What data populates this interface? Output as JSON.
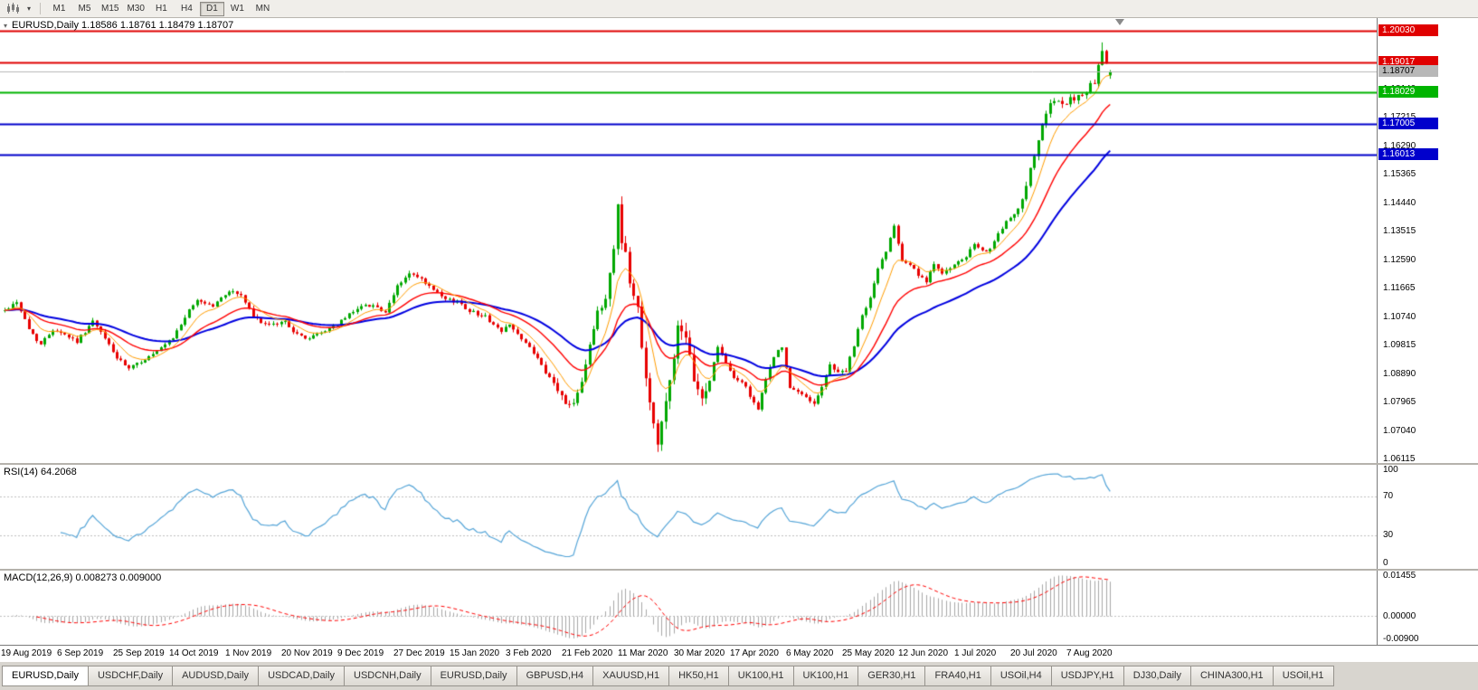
{
  "colors": {
    "up": "#00a800",
    "down": "#e80000",
    "ma_fast": "#ff9d00",
    "ma_mid": "#ff0000",
    "ma_slow": "#0000e0",
    "rsi_line": "#55a5d8",
    "macd_hist": "#a8a8a8",
    "macd_signal": "#ff0000",
    "grid_dash": "#c0c0c0"
  },
  "toolbar": {
    "chart_icon": "candlestick-chart-icon",
    "dropdown_icon": "chevron-down-icon",
    "timeframes": [
      "M1",
      "M5",
      "M15",
      "M30",
      "H1",
      "H4",
      "D1",
      "W1",
      "MN"
    ],
    "active_timeframe": "D1"
  },
  "main_panel": {
    "header": "EURUSD,Daily 1.18586 1.18761 1.18479 1.18707",
    "symbol": "EURUSD",
    "period": "Daily",
    "open": "1.18586",
    "high": "1.18761",
    "low": "1.18479",
    "close": "1.18707"
  },
  "price_axis": {
    "y_max": 1.2045,
    "y_min": 1.06,
    "ticks": [
      "1.19065",
      "1.18140",
      "1.17215",
      "1.16290",
      "1.15365",
      "1.14440",
      "1.13515",
      "1.12590",
      "1.11665",
      "1.10740",
      "1.09815",
      "1.08890",
      "1.07965",
      "1.07040",
      "1.06115"
    ],
    "levels": [
      {
        "value": "1.20030",
        "price": 1.2003,
        "color": "#e00000",
        "text_color": "#ffffff",
        "width": 2,
        "role": "resistance"
      },
      {
        "value": "1.19017",
        "price": 1.19017,
        "color": "#e00000",
        "text_color": "#ffffff",
        "width": 2,
        "role": "resistance"
      },
      {
        "value": "1.18707",
        "price": 1.18707,
        "color": "#b8b8b8",
        "text_color": "#000000",
        "width": 1,
        "role": "bid"
      },
      {
        "value": "1.18029",
        "price": 1.18029,
        "color": "#00b400",
        "text_color": "#ffffff",
        "width": 2,
        "role": "support"
      },
      {
        "value": "1.17005",
        "price": 1.17005,
        "color": "#0000cc",
        "text_color": "#ffffff",
        "width": 2,
        "role": "support"
      },
      {
        "value": "1.16013",
        "price": 1.16013,
        "color": "#0000cc",
        "text_color": "#ffffff",
        "width": 2,
        "role": "support"
      }
    ]
  },
  "rsi_panel": {
    "label": "RSI(14) 64.2068",
    "indicator": "RSI",
    "period": 14,
    "current": "64.2068",
    "ticks": [
      "100",
      "70",
      "30",
      "0"
    ],
    "dashed_levels": [
      70,
      30
    ]
  },
  "macd_panel": {
    "label": "MACD(12,26,9) 0.008273 0.009000",
    "indicator": "MACD",
    "params": "12,26,9",
    "macd_value": "0.008273",
    "signal_value": "0.009000",
    "y_max": 0.0152,
    "y_min": -0.0096,
    "ticks": [
      "0.01455",
      "0.00000",
      "-0.00900"
    ]
  },
  "date_axis": {
    "labels": [
      "19 Aug 2019",
      "6 Sep 2019",
      "25 Sep 2019",
      "14 Oct 2019",
      "1 Nov 2019",
      "20 Nov 2019",
      "9 Dec 2019",
      "27 Dec 2019",
      "15 Jan 2020",
      "3 Feb 2020",
      "21 Feb 2020",
      "11 Mar 2020",
      "30 Mar 2020",
      "17 Apr 2020",
      "6 May 2020",
      "25 May 2020",
      "12 Jun 2020",
      "1 Jul 2020",
      "20 Jul 2020",
      "7 Aug 2020"
    ],
    "bars_per_label": 14
  },
  "tabs": [
    {
      "label": "EURUSD,Daily",
      "active": true
    },
    {
      "label": "USDCHF,Daily",
      "active": false
    },
    {
      "label": "AUDUSD,Daily",
      "active": false
    },
    {
      "label": "USDCAD,Daily",
      "active": false
    },
    {
      "label": "USDCNH,Daily",
      "active": false
    },
    {
      "label": "EURUSD,Daily",
      "active": false
    },
    {
      "label": "GBPUSD,H4",
      "active": false
    },
    {
      "label": "XAUUSD,H1",
      "active": false
    },
    {
      "label": "HK50,H1",
      "active": false
    },
    {
      "label": "UK100,H1",
      "active": false
    },
    {
      "label": "UK100,H1",
      "active": false
    },
    {
      "label": "GER30,H1",
      "active": false
    },
    {
      "label": "FRA40,H1",
      "active": false
    },
    {
      "label": "USOil,H4",
      "active": false
    },
    {
      "label": "USDJPY,H1",
      "active": false
    },
    {
      "label": "DJ30,Daily",
      "active": false
    },
    {
      "label": "CHINA300,H1",
      "active": false
    },
    {
      "label": "USOil,H1",
      "active": false
    }
  ],
  "chart_data": {
    "type": "candlestick",
    "symbol": "EURUSD",
    "timeframe": "Daily",
    "x_start": "19 Aug 2019",
    "x_end": "20 Aug 2020",
    "bars": 277,
    "y_range": [
      1.06,
      1.2045
    ],
    "seed": 42,
    "last_bar": {
      "open": 1.18586,
      "high": 1.18761,
      "low": 1.18479,
      "close": 1.18707
    },
    "swing_high": {
      "index": 274,
      "high": 1.1966
    },
    "swing_low": {
      "index": 163,
      "low": 1.0636
    },
    "horizontal_levels": [
      1.2003,
      1.19017,
      1.18029,
      1.17005,
      1.16013
    ],
    "moving_averages": [
      {
        "type": "EMA",
        "period": 8,
        "color_key": "ma_fast"
      },
      {
        "type": "EMA",
        "period": 20,
        "color_key": "ma_mid"
      },
      {
        "type": "EMA",
        "period": 40,
        "color_key": "ma_slow"
      }
    ],
    "indicators": [
      {
        "name": "RSI",
        "period": 14,
        "current": 64.2068,
        "range": [
          0,
          100
        ],
        "levels": [
          70,
          30
        ]
      },
      {
        "name": "MACD",
        "fast": 12,
        "slow": 26,
        "signal": 9,
        "macd": 0.008273,
        "signal_value": 0.009,
        "scale_max": 0.01455,
        "scale_min": -0.009
      }
    ],
    "close_waypoints": [
      [
        0,
        1.1095
      ],
      [
        3,
        1.1125
      ],
      [
        6,
        1.1035
      ],
      [
        9,
        1.0985
      ],
      [
        12,
        1.1035
      ],
      [
        14,
        1.1025
      ],
      [
        18,
        1.0995
      ],
      [
        22,
        1.106
      ],
      [
        26,
        1.0985
      ],
      [
        28,
        1.094
      ],
      [
        31,
        1.0905
      ],
      [
        34,
        1.093
      ],
      [
        38,
        1.096
      ],
      [
        42,
        1.1005
      ],
      [
        45,
        1.1075
      ],
      [
        48,
        1.113
      ],
      [
        52,
        1.111
      ],
      [
        56,
        1.116
      ],
      [
        59,
        1.1145
      ],
      [
        62,
        1.1075
      ],
      [
        66,
        1.1045
      ],
      [
        70,
        1.106
      ],
      [
        73,
        1.1015
      ],
      [
        76,
        1.1005
      ],
      [
        80,
        1.103
      ],
      [
        84,
        1.106
      ],
      [
        88,
        1.1105
      ],
      [
        92,
        1.1115
      ],
      [
        95,
        1.1085
      ],
      [
        98,
        1.1175
      ],
      [
        101,
        1.1215
      ],
      [
        104,
        1.1195
      ],
      [
        107,
        1.116
      ],
      [
        110,
        1.113
      ],
      [
        113,
        1.1125
      ],
      [
        116,
        1.1095
      ],
      [
        120,
        1.1075
      ],
      [
        124,
        1.1025
      ],
      [
        126,
        1.1055
      ],
      [
        129,
        1.1
      ],
      [
        132,
        1.096
      ],
      [
        135,
        1.089
      ],
      [
        138,
        1.084
      ],
      [
        140,
        1.079
      ],
      [
        142,
        1.08
      ],
      [
        144,
        1.087
      ],
      [
        146,
        1.0985
      ],
      [
        148,
        1.1085
      ],
      [
        150,
        1.1135
      ],
      [
        152,
        1.13
      ],
      [
        153,
        1.144
      ],
      [
        154,
        1.133
      ],
      [
        155,
        1.128
      ],
      [
        156,
        1.118
      ],
      [
        158,
        1.1105
      ],
      [
        160,
        1.088
      ],
      [
        162,
        1.073
      ],
      [
        163,
        1.066
      ],
      [
        164,
        1.0725
      ],
      [
        166,
        1.087
      ],
      [
        168,
        1.104
      ],
      [
        170,
        1.099
      ],
      [
        172,
        1.088
      ],
      [
        174,
        1.08
      ],
      [
        176,
        1.087
      ],
      [
        178,
        1.098
      ],
      [
        180,
        1.092
      ],
      [
        182,
        1.0875
      ],
      [
        184,
        1.0865
      ],
      [
        186,
        1.082
      ],
      [
        188,
        1.0775
      ],
      [
        190,
        1.087
      ],
      [
        192,
        1.095
      ],
      [
        194,
        1.0975
      ],
      [
        196,
        1.084
      ],
      [
        198,
        1.083
      ],
      [
        200,
        1.0815
      ],
      [
        202,
        1.0795
      ],
      [
        204,
        1.0845
      ],
      [
        206,
        1.092
      ],
      [
        208,
        1.0895
      ],
      [
        210,
        1.09
      ],
      [
        212,
        1.098
      ],
      [
        214,
        1.108
      ],
      [
        216,
        1.1135
      ],
      [
        218,
        1.123
      ],
      [
        220,
        1.129
      ],
      [
        222,
        1.1375
      ],
      [
        224,
        1.126
      ],
      [
        226,
        1.1245
      ],
      [
        228,
        1.121
      ],
      [
        230,
        1.1185
      ],
      [
        232,
        1.125
      ],
      [
        234,
        1.122
      ],
      [
        236,
        1.123
      ],
      [
        238,
        1.125
      ],
      [
        240,
        1.127
      ],
      [
        242,
        1.131
      ],
      [
        244,
        1.1285
      ],
      [
        246,
        1.13
      ],
      [
        248,
        1.134
      ],
      [
        250,
        1.1385
      ],
      [
        252,
        1.14
      ],
      [
        254,
        1.145
      ],
      [
        256,
        1.156
      ],
      [
        258,
        1.165
      ],
      [
        260,
        1.174
      ],
      [
        262,
        1.178
      ],
      [
        264,
        1.176
      ],
      [
        266,
        1.178
      ],
      [
        268,
        1.179
      ],
      [
        270,
        1.181
      ],
      [
        272,
        1.184
      ],
      [
        274,
        1.193
      ],
      [
        275,
        1.19
      ],
      [
        276,
        1.18707
      ]
    ]
  }
}
